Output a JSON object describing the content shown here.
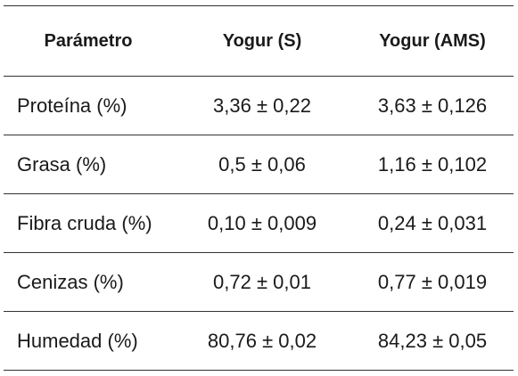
{
  "table": {
    "headers": [
      "Parámetro",
      "Yogur (S)",
      "Yogur (AMS)"
    ],
    "rows": [
      {
        "param": "Proteína (%)",
        "s": "3,36 ± 0,22",
        "ams": "3,63 ± 0,126"
      },
      {
        "param": "Grasa (%)",
        "s": "0,5 ± 0,06",
        "ams": "1,16 ± 0,102"
      },
      {
        "param": "Fibra cruda (%)",
        "s": "0,10 ± 0,009",
        "ams": "0,24 ± 0,031"
      },
      {
        "param": "Cenizas (%)",
        "s": "0,72 ± 0,01",
        "ams": "0,77 ± 0,019"
      },
      {
        "param": "Humedad (%)",
        "s": "80,76 ± 0,02",
        "ams": "84,23 ± 0,05"
      }
    ]
  }
}
